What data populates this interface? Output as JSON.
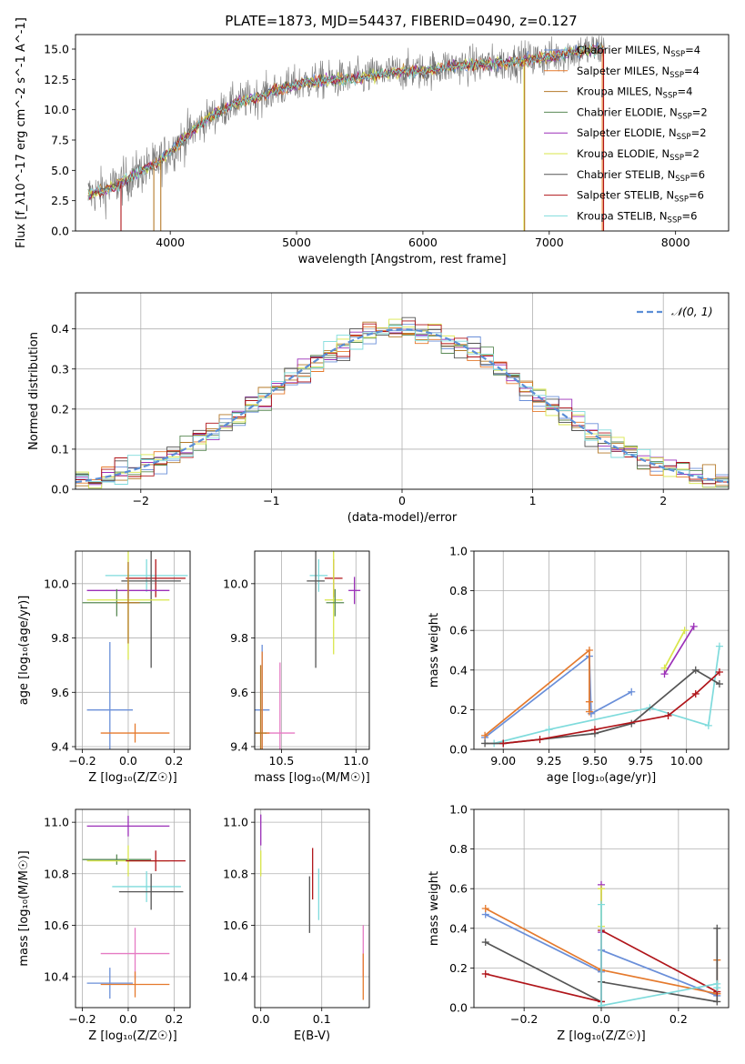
{
  "figure": {
    "title": "PLATE=1873, MJD=54437, FIBERID=0490, z=0.127"
  },
  "colors": {
    "Chabrier MILES": "#6a8fd9",
    "Salpeter MILES": "#e57a2d",
    "Kroupa MILES": "#b57a2a",
    "Chabrier ELODIE": "#5a8a55",
    "Salpeter ELODIE": "#9b2fb8",
    "Kroupa ELODIE": "#d9e64a",
    "Chabrier STELIB": "#555555",
    "Salpeter STELIB": "#b0151a",
    "Kroupa STELIB": "#7fdbdc",
    "pink": "#e57ac3",
    "data": "#777777",
    "normal": "#5b8ed6"
  },
  "chart_data": [
    {
      "id": "spectrum",
      "type": "line",
      "xlabel": "wavelength [Angstrom, rest frame]",
      "ylabel": "Flux [f_λ10^-17 erg cm^-2 s^-1 A^-1]",
      "xlim": [
        3250,
        8420
      ],
      "ylim": [
        0,
        16.2
      ],
      "xticks": [
        4000,
        5000,
        6000,
        7000,
        8000
      ],
      "yticks": [
        0.0,
        2.5,
        5.0,
        7.5,
        10.0,
        12.5,
        15.0
      ],
      "xtick_labels": [
        "4000",
        "5000",
        "6000",
        "7000",
        "8000"
      ],
      "ytick_labels": [
        "0.0",
        "2.5",
        "5.0",
        "7.5",
        "10.0",
        "12.5",
        "15.0"
      ],
      "grid": false,
      "legend": "right",
      "legend_entries": [
        {
          "name": "Chabrier MILES, N_SSP=4",
          "label_main": "Chabrier MILES, N",
          "label_sub": "SSP",
          "label_tail": "=4",
          "model": "Chabrier MILES"
        },
        {
          "name": "Salpeter MILES, N_SSP=4",
          "label_main": "Salpeter MILES, N",
          "label_sub": "SSP",
          "label_tail": "=4",
          "model": "Salpeter MILES"
        },
        {
          "name": "Kroupa MILES, N_SSP=4",
          "label_main": "Kroupa MILES, N",
          "label_sub": "SSP",
          "label_tail": "=4",
          "model": "Kroupa MILES"
        },
        {
          "name": "Chabrier ELODIE, N_SSP=2",
          "label_main": "Chabrier ELODIE, N",
          "label_sub": "SSP",
          "label_tail": "=2",
          "model": "Chabrier ELODIE"
        },
        {
          "name": "Salpeter ELODIE, N_SSP=2",
          "label_main": "Salpeter ELODIE, N",
          "label_sub": "SSP",
          "label_tail": "=2",
          "model": "Salpeter ELODIE"
        },
        {
          "name": "Kroupa ELODIE, N_SSP=2",
          "label_main": "Kroupa ELODIE, N",
          "label_sub": "SSP",
          "label_tail": "=2",
          "model": "Kroupa ELODIE"
        },
        {
          "name": "Chabrier STELIB, N_SSP=6",
          "label_main": "Chabrier STELIB, N",
          "label_sub": "SSP",
          "label_tail": "=6",
          "model": "Chabrier STELIB"
        },
        {
          "name": "Salpeter STELIB, N_SSP=6",
          "label_main": "Salpeter STELIB, N",
          "label_sub": "SSP",
          "label_tail": "=6",
          "model": "Salpeter STELIB"
        },
        {
          "name": "Kroupa STELIB, N_SSP=6",
          "label_main": "Kroupa STELIB, N",
          "label_sub": "SSP",
          "label_tail": "=6",
          "model": "Kroupa STELIB"
        }
      ],
      "continuum": {
        "x": [
          3350,
          3500,
          3700,
          3900,
          4000,
          4100,
          4200,
          4300,
          4500,
          4700,
          4900,
          5100,
          5300,
          5500,
          5700,
          5900,
          6000,
          6200,
          6400,
          6600,
          6800,
          7000,
          7200,
          7400
        ],
        "y": [
          3.0,
          3.4,
          4.5,
          5.6,
          6.6,
          7.5,
          8.5,
          9.3,
          10.5,
          11.1,
          11.8,
          12.3,
          12.5,
          12.6,
          13.0,
          13.2,
          13.2,
          13.6,
          13.7,
          13.8,
          14.1,
          14.3,
          14.8,
          15.0
        ]
      },
      "data_noise_amplitude": 1.1,
      "deep_drops": [
        {
          "x": 3610,
          "model": "Salpeter STELIB"
        },
        {
          "x": 3870,
          "model": "Kroupa MILES"
        },
        {
          "x": 3925,
          "model": "Kroupa MILES"
        },
        {
          "x": 6800,
          "model": "Kroupa ELODIE"
        },
        {
          "x": 6805,
          "model": "Kroupa MILES"
        },
        {
          "x": 7420,
          "model": "Salpeter MILES"
        },
        {
          "x": 7430,
          "model": "Salpeter STELIB"
        }
      ]
    },
    {
      "id": "residuals",
      "type": "area",
      "xlabel": "(data-model)/error",
      "ylabel": "Normed distribution",
      "xlim": [
        -2.5,
        2.5
      ],
      "ylim": [
        0,
        0.49
      ],
      "xticks": [
        -2,
        -1,
        0,
        1,
        2
      ],
      "yticks": [
        0.0,
        0.1,
        0.2,
        0.3,
        0.4
      ],
      "xtick_labels": [
        "−2",
        "−1",
        "0",
        "1",
        "2"
      ],
      "ytick_labels": [
        "0.0",
        "0.1",
        "0.2",
        "0.3",
        "0.4"
      ],
      "grid": true,
      "legend": "top-right",
      "legend_label": "𝒩(0, 1)",
      "bin_width": 0.1,
      "bins_start": -2.5,
      "models": [
        "Chabrier MILES",
        "Salpeter MILES",
        "Kroupa MILES",
        "Chabrier ELODIE",
        "Salpeter ELODIE",
        "Kroupa ELODIE",
        "Chabrier STELIB",
        "Salpeter STELIB",
        "Kroupa STELIB"
      ],
      "gaussian": {
        "mean": 0,
        "sigma": 1
      }
    },
    {
      "id": "age_vs_Z",
      "type": "scatter",
      "xlabel": "Z [log₁₀(Z/Z☉)]",
      "ylabel": "age  [log₁₀(age/yr)]",
      "xlim": [
        -0.23,
        0.27
      ],
      "ylim": [
        9.39,
        10.12
      ],
      "xticks": [
        -0.2,
        0.0,
        0.2
      ],
      "yticks": [
        9.4,
        9.6,
        9.8,
        10.0
      ],
      "xtick_labels": [
        "−0.2",
        "0.0",
        "0.2"
      ],
      "ytick_labels": [
        "9.4",
        "9.6",
        "9.8",
        "10.0"
      ],
      "grid": true,
      "points": [
        {
          "model": "Kroupa STELIB",
          "x": 0.08,
          "y": 10.03,
          "xerr": 0.18,
          "yerr": 0.06
        },
        {
          "model": "Salpeter STELIB",
          "x": 0.12,
          "y": 10.02,
          "xerr": 0.13,
          "yerr": 0.07
        },
        {
          "model": "Chabrier STELIB",
          "x": 0.1,
          "y": 10.01,
          "xerr": 0.13,
          "yerr": 0.32
        },
        {
          "model": "Salpeter ELODIE",
          "x": 0.0,
          "y": 9.975,
          "xerr": 0.18,
          "yerr": 0.03
        },
        {
          "model": "Chabrier ELODIE",
          "x": -0.05,
          "y": 9.93,
          "xerr": 0.15,
          "yerr": 0.05
        },
        {
          "model": "Kroupa ELODIE",
          "x": 0.0,
          "y": 9.94,
          "xerr": 0.18,
          "yerr": 0.22
        },
        {
          "model": "Kroupa MILES",
          "x": 0.0,
          "y": 9.93,
          "xerr": 0.05,
          "yerr": 0.15
        },
        {
          "model": "Chabrier MILES",
          "x": -0.08,
          "y": 9.535,
          "xerr": 0.1,
          "yerr": 0.25
        },
        {
          "model": "Salpeter MILES",
          "x": 0.03,
          "y": 9.45,
          "xerr": 0.15,
          "yerr": 0.035
        }
      ]
    },
    {
      "id": "age_vs_mass",
      "type": "scatter",
      "xlabel": "mass [log₁₀(M/M☉)]",
      "ylabel": "",
      "xlim": [
        10.32,
        11.09
      ],
      "ylim": [
        9.39,
        10.12
      ],
      "xticks": [
        10.5,
        11.0
      ],
      "yticks": [
        9.4,
        9.6,
        9.8,
        10.0
      ],
      "xtick_labels": [
        "10.5",
        "11.0"
      ],
      "ytick_labels": [
        "9.4",
        "9.6",
        "9.8",
        "10.0"
      ],
      "grid": true,
      "points": [
        {
          "model": "Kroupa STELIB",
          "x": 10.75,
          "y": 10.03,
          "xerr": 0.06,
          "yerr": 0.06
        },
        {
          "model": "Salpeter STELIB",
          "x": 10.85,
          "y": 10.02,
          "xerr": 0.06,
          "yerr": 0.07
        },
        {
          "model": "Chabrier STELIB",
          "x": 10.73,
          "y": 10.01,
          "xerr": 0.06,
          "yerr": 0.32
        },
        {
          "model": "Salpeter ELODIE",
          "x": 10.99,
          "y": 9.975,
          "xerr": 0.04,
          "yerr": 0.05
        },
        {
          "model": "Kroupa ELODIE",
          "x": 10.85,
          "y": 9.94,
          "xerr": 0.06,
          "yerr": 0.2
        },
        {
          "model": "Chabrier ELODIE",
          "x": 10.86,
          "y": 9.93,
          "xerr": 0.06,
          "yerr": 0.05
        },
        {
          "model": "Chabrier MILES",
          "x": 10.37,
          "y": 9.535,
          "xerr": 0.05,
          "yerr": 0.24
        },
        {
          "model": "pink",
          "x": 10.49,
          "y": 9.45,
          "xerr": 0.1,
          "yerr": 0.26
        },
        {
          "model": "Salpeter MILES",
          "x": 10.37,
          "y": 9.45,
          "xerr": 0.05,
          "yerr": 0.3
        },
        {
          "model": "Kroupa MILES",
          "x": 10.36,
          "y": 9.45,
          "xerr": 0.04,
          "yerr": 0.25
        }
      ]
    },
    {
      "id": "weight_vs_age",
      "type": "line",
      "xlabel": "age  [log₁₀(age/yr)]",
      "ylabel": "mass weight",
      "xlim": [
        8.84,
        10.23
      ],
      "ylim": [
        0,
        1.0
      ],
      "xticks": [
        9.0,
        9.25,
        9.5,
        9.75,
        10.0
      ],
      "yticks": [
        0.0,
        0.2,
        0.4,
        0.6,
        0.8,
        1.0
      ],
      "xtick_labels": [
        "9.00",
        "9.25",
        "9.50",
        "9.75",
        "10.00"
      ],
      "ytick_labels": [
        "0.0",
        "0.2",
        "0.4",
        "0.6",
        "0.8",
        "1.0"
      ],
      "grid": true,
      "series": [
        {
          "model": "Chabrier MILES",
          "x": [
            8.9,
            9.47,
            9.48,
            9.7
          ],
          "y": [
            0.06,
            0.47,
            0.18,
            0.29
          ]
        },
        {
          "model": "Salpeter MILES",
          "x": [
            8.9,
            9.47,
            9.47,
            9.47
          ],
          "y": [
            0.07,
            0.5,
            0.24,
            0.19
          ]
        },
        {
          "model": "Kroupa ELODIE",
          "x": [
            9.88,
            9.99
          ],
          "y": [
            0.41,
            0.6
          ]
        },
        {
          "model": "Salpeter ELODIE",
          "x": [
            9.88,
            10.04
          ],
          "y": [
            0.38,
            0.62
          ]
        },
        {
          "model": "Kroupa STELIB",
          "x": [
            8.95,
            9.25,
            9.8,
            10.12,
            10.18
          ],
          "y": [
            0.03,
            0.1,
            0.21,
            0.12,
            0.52
          ]
        },
        {
          "model": "Chabrier STELIB",
          "x": [
            8.9,
            9.0,
            9.5,
            9.7,
            10.05,
            10.18
          ],
          "y": [
            0.03,
            0.03,
            0.08,
            0.13,
            0.4,
            0.33
          ]
        },
        {
          "model": "Salpeter STELIB",
          "x": [
            9.0,
            9.2,
            9.5,
            9.9,
            10.05,
            10.18
          ],
          "y": [
            0.03,
            0.05,
            0.1,
            0.17,
            0.28,
            0.39
          ]
        }
      ]
    },
    {
      "id": "mass_vs_Z",
      "type": "scatter",
      "xlabel": "Z [log₁₀(Z/Z☉)]",
      "ylabel": "mass [log₁₀(M/M☉)]",
      "xlim": [
        -0.23,
        0.27
      ],
      "ylim": [
        10.28,
        11.05
      ],
      "xticks": [
        -0.2,
        0.0,
        0.2
      ],
      "yticks": [
        10.4,
        10.6,
        10.8,
        11.0
      ],
      "xtick_labels": [
        "−0.2",
        "0.0",
        "0.2"
      ],
      "ytick_labels": [
        "10.4",
        "10.6",
        "10.8",
        "11.0"
      ],
      "grid": true,
      "points": [
        {
          "model": "Salpeter ELODIE",
          "x": 0.0,
          "y": 10.985,
          "xerr": 0.18,
          "yerr": 0.04
        },
        {
          "model": "Chabrier ELODIE",
          "x": -0.05,
          "y": 10.855,
          "xerr": 0.15,
          "yerr": 0.02
        },
        {
          "model": "Kroupa ELODIE",
          "x": 0.0,
          "y": 10.85,
          "xerr": 0.18,
          "yerr": 0.06
        },
        {
          "model": "Salpeter STELIB",
          "x": 0.12,
          "y": 10.85,
          "xerr": 0.13,
          "yerr": 0.04
        },
        {
          "model": "Kroupa STELIB",
          "x": 0.08,
          "y": 10.75,
          "xerr": 0.15,
          "yerr": 0.06
        },
        {
          "model": "Chabrier STELIB",
          "x": 0.1,
          "y": 10.73,
          "xerr": 0.14,
          "yerr": 0.07
        },
        {
          "model": "pink",
          "x": 0.03,
          "y": 10.49,
          "xerr": 0.15,
          "yerr": 0.1
        },
        {
          "model": "Chabrier MILES",
          "x": -0.08,
          "y": 10.375,
          "xerr": 0.1,
          "yerr": 0.06
        },
        {
          "model": "Salpeter MILES",
          "x": 0.03,
          "y": 10.37,
          "xerr": 0.15,
          "yerr": 0.05
        }
      ]
    },
    {
      "id": "mass_vs_ebv",
      "type": "scatter",
      "xlabel": "E(B-V)",
      "ylabel": "",
      "xlim": [
        -0.01,
        0.178
      ],
      "ylim": [
        10.28,
        11.05
      ],
      "xticks": [
        0.0,
        0.1
      ],
      "yticks": [
        10.4,
        10.6,
        10.8,
        11.0
      ],
      "xtick_labels": [
        "0.0",
        "0.1"
      ],
      "ytick_labels": [
        "10.4",
        "10.6",
        "10.8",
        "11.0"
      ],
      "grid": true,
      "points": [
        {
          "model": "Salpeter ELODIE",
          "x": 0.0,
          "y": 10.97,
          "xerr": 0.0,
          "yerr": 0.06
        },
        {
          "model": "Kroupa ELODIE",
          "x": 0.0,
          "y": 10.84,
          "xerr": 0.0,
          "yerr": 0.05
        },
        {
          "model": "Salpeter STELIB",
          "x": 0.085,
          "y": 10.8,
          "xerr": 0.0,
          "yerr": 0.1
        },
        {
          "model": "Kroupa STELIB",
          "x": 0.095,
          "y": 10.72,
          "xerr": 0.0,
          "yerr": 0.1
        },
        {
          "model": "Chabrier STELIB",
          "x": 0.08,
          "y": 10.68,
          "xerr": 0.0,
          "yerr": 0.11
        },
        {
          "model": "pink",
          "x": 0.168,
          "y": 10.5,
          "xerr": 0.0,
          "yerr": 0.1
        },
        {
          "model": "Salpeter MILES",
          "x": 0.168,
          "y": 10.4,
          "xerr": 0.0,
          "yerr": 0.09
        }
      ]
    },
    {
      "id": "weight_vs_Z",
      "type": "line",
      "xlabel": "Z [log₁₀(Z/Z☉)]",
      "ylabel": "mass weight",
      "xlim": [
        -0.33,
        0.33
      ],
      "ylim": [
        0,
        1.0
      ],
      "xticks": [
        -0.2,
        0.0,
        0.2
      ],
      "yticks": [
        0.0,
        0.2,
        0.4,
        0.6,
        0.8,
        1.0
      ],
      "xtick_labels": [
        "−0.2",
        "0.0",
        "0.2"
      ],
      "ytick_labels": [
        "0.0",
        "0.2",
        "0.4",
        "0.6",
        "0.8",
        "1.0"
      ],
      "grid": true,
      "series": [
        {
          "model": "Chabrier MILES",
          "x": [
            -0.3,
            0.0,
            0.0,
            0.3
          ],
          "y": [
            0.47,
            0.18,
            0.29,
            0.06
          ]
        },
        {
          "model": "Salpeter MILES",
          "x": [
            -0.3,
            0.0,
            0.3,
            0.3,
            0.3
          ],
          "y": [
            0.5,
            0.19,
            0.07,
            0.24,
            0.07
          ]
        },
        {
          "model": "Salpeter ELODIE",
          "x": [
            0.0,
            0.0
          ],
          "y": [
            0.38,
            0.62
          ]
        },
        {
          "model": "Kroupa ELODIE",
          "x": [
            0.0,
            0.0
          ],
          "y": [
            0.41,
            0.6
          ]
        },
        {
          "model": "Chabrier STELIB",
          "x": [
            -0.3,
            0.0,
            0.0,
            0.3,
            0.3
          ],
          "y": [
            0.33,
            0.03,
            0.13,
            0.03,
            0.4
          ]
        },
        {
          "model": "Salpeter STELIB",
          "x": [
            -0.3,
            0.0,
            0.0,
            0.3
          ],
          "y": [
            0.17,
            0.03,
            0.39,
            0.08
          ]
        },
        {
          "model": "Kroupa STELIB",
          "x": [
            0.0,
            0.0,
            0.3,
            0.3
          ],
          "y": [
            0.52,
            0.01,
            0.12,
            0.1
          ]
        }
      ]
    }
  ]
}
